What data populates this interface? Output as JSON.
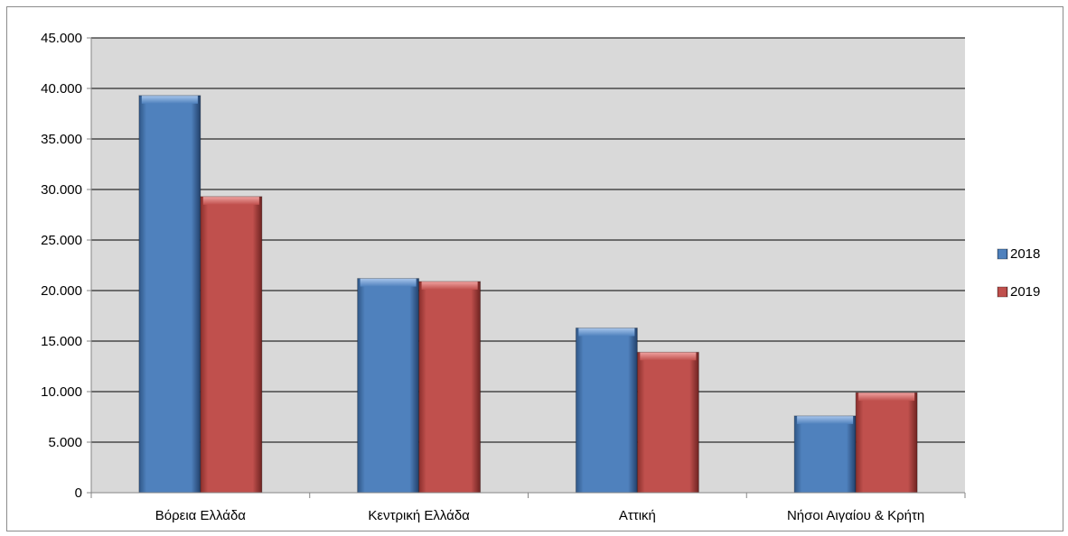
{
  "chart_data": {
    "type": "bar",
    "title": "",
    "xlabel": "",
    "ylabel": "",
    "categories": [
      "Βόρεια Ελλάδα",
      "Κεντρική Ελλάδα",
      "Αττική",
      "Νήσοι Αιγαίου & Κρήτη"
    ],
    "series": [
      {
        "name": "2018",
        "values": [
          39300,
          21200,
          16300,
          7600
        ],
        "color": "#4f81bd"
      },
      {
        "name": "2019",
        "values": [
          29300,
          20900,
          13900,
          9900
        ],
        "color": "#c0504d"
      }
    ],
    "ylim": [
      0,
      45000
    ],
    "yticks": [
      0,
      5000,
      10000,
      15000,
      20000,
      25000,
      30000,
      35000,
      40000,
      45000
    ],
    "ytick_labels": [
      "0",
      "5.000",
      "10.000",
      "15.000",
      "20.000",
      "25.000",
      "30.000",
      "35.000",
      "40.000",
      "45.000"
    ],
    "grid": true,
    "plot_background": "#d9d9d9",
    "legend_position": "right"
  }
}
